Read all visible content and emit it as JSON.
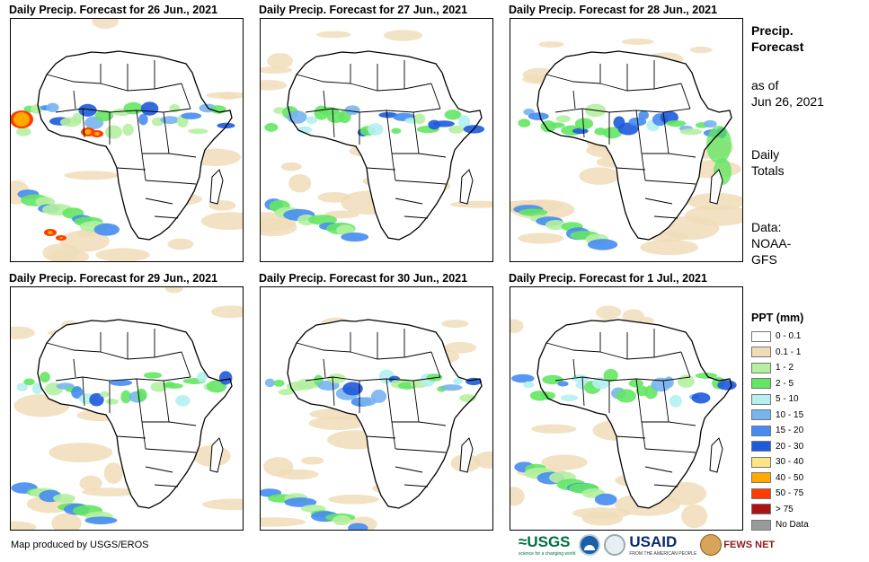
{
  "panels": [
    {
      "title": "Daily Precip. Forecast for 26 Jun., 2021"
    },
    {
      "title": "Daily Precip. Forecast for 27 Jun., 2021"
    },
    {
      "title": "Daily Precip. Forecast for 28 Jun., 2021"
    },
    {
      "title": "Daily Precip. Forecast for 29 Jun., 2021"
    },
    {
      "title": "Daily Precip. Forecast for 30 Jun., 2021"
    },
    {
      "title": "Daily Precip. Forecast for 1 Jul., 2021"
    }
  ],
  "sidebar": {
    "heading_line1": "Precip.",
    "heading_line2": "Forecast",
    "asof_line1": "as of",
    "asof_line2": "Jun 26, 2021",
    "totals_line1": "Daily",
    "totals_line2": "Totals",
    "data_line1": "Data:",
    "data_line2": "NOAA-",
    "data_line3": "GFS"
  },
  "legend": {
    "title": "PPT (mm)",
    "items": [
      {
        "label": "0 - 0.1",
        "color": "#ffffff"
      },
      {
        "label": "0.1 - 1",
        "color": "#f0dcb8"
      },
      {
        "label": "1 - 2",
        "color": "#b4f0a0"
      },
      {
        "label": "2 - 5",
        "color": "#64e664"
      },
      {
        "label": "5 - 10",
        "color": "#b4f0f0"
      },
      {
        "label": "10 - 15",
        "color": "#78b4f0"
      },
      {
        "label": "15 - 20",
        "color": "#468cf0"
      },
      {
        "label": "20 - 30",
        "color": "#1e5adc"
      },
      {
        "label": "30 - 40",
        "color": "#ffe682"
      },
      {
        "label": "40 - 50",
        "color": "#ffaa00"
      },
      {
        "label": "50 - 75",
        "color": "#ff3c00"
      },
      {
        "label": "> 75",
        "color": "#aa1414"
      },
      {
        "label": "No Data",
        "color": "#9a9a9a"
      }
    ]
  },
  "footer": {
    "credit": "Map produced by USGS/EROS",
    "logo_usgs": "≈USGS",
    "logo_usgs_tag": "science for a changing world",
    "logo_usaid": "USAID",
    "logo_usaid_tag": "FROM THE AMERICAN PEOPLE",
    "logo_fews": "FEWS NET"
  }
}
